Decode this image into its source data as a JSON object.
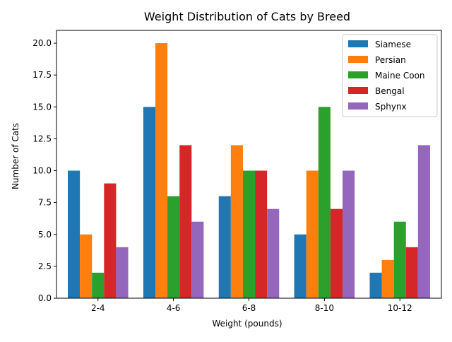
{
  "chart_data": {
    "type": "bar",
    "title": "Weight Distribution of Cats by Breed",
    "xlabel": "Weight (pounds)",
    "ylabel": "Number of Cats",
    "categories": [
      "2-4",
      "4-6",
      "6-8",
      "8-10",
      "10-12"
    ],
    "ylim": [
      0,
      21
    ],
    "yticks": [
      "0.0",
      "2.5",
      "5.0",
      "7.5",
      "10.0",
      "12.5",
      "15.0",
      "17.5",
      "20.0"
    ],
    "grid": false,
    "legend_position": "top-right",
    "series": [
      {
        "name": "Siamese",
        "color": "#1f77b4",
        "values": [
          10,
          15,
          8,
          5,
          2
        ]
      },
      {
        "name": "Persian",
        "color": "#ff7f0e",
        "values": [
          5,
          20,
          12,
          10,
          3
        ]
      },
      {
        "name": "Maine Coon",
        "color": "#2ca02c",
        "values": [
          2,
          8,
          10,
          15,
          6
        ]
      },
      {
        "name": "Bengal",
        "color": "#d62728",
        "values": [
          9,
          12,
          10,
          7,
          4
        ]
      },
      {
        "name": "Sphynx",
        "color": "#9467bd",
        "values": [
          4,
          6,
          7,
          10,
          12
        ]
      }
    ]
  }
}
